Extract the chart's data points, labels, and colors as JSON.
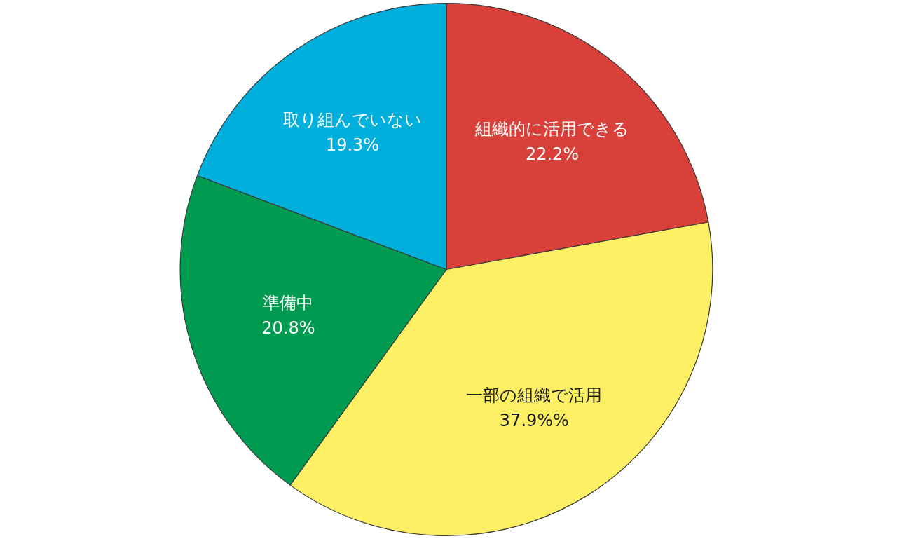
{
  "chart_data": {
    "type": "pie",
    "categories": [
      "組織的に活用できる",
      "一部の組織で活用",
      "準備中",
      "取り組んでいない"
    ],
    "values": [
      22.2,
      37.9,
      20.8,
      19.3
    ],
    "colors": [
      "#d9403a",
      "#fef065",
      "#009a50",
      "#00afdc"
    ],
    "value_labels": [
      "22.2%",
      "37.9%%",
      "20.8%",
      "19.3%"
    ],
    "legend": false
  }
}
